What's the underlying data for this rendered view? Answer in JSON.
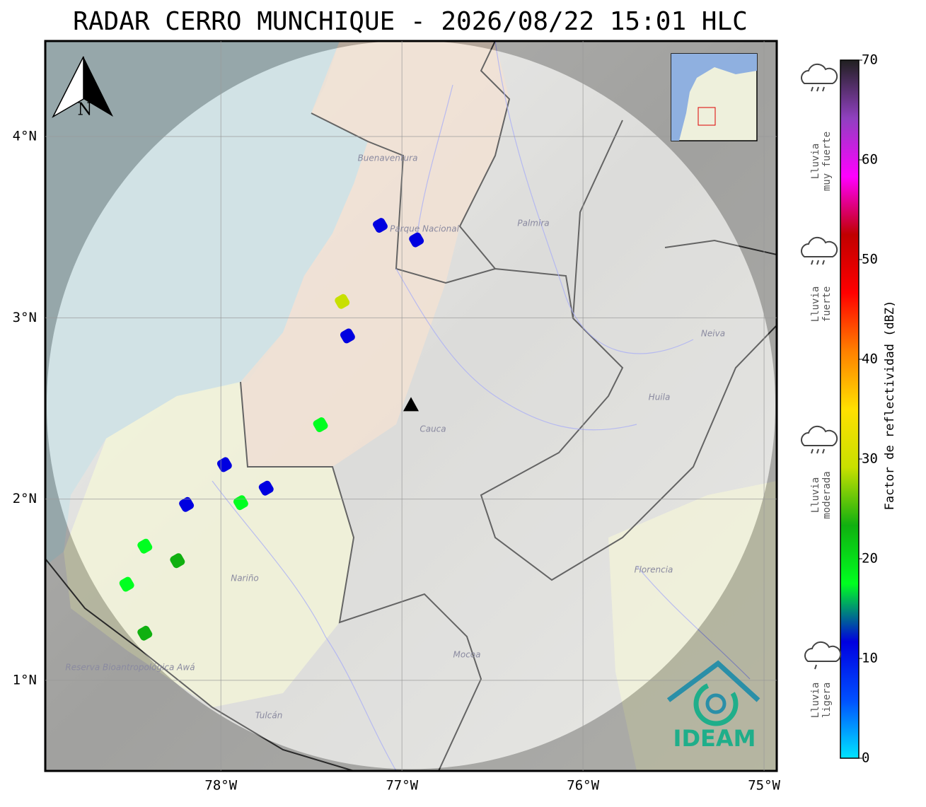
{
  "title": "RADAR CERRO MUNCHIQUE - 2026/08/22 15:01 HLC",
  "map": {
    "xlim": [
      -78.97,
      -74.93
    ],
    "ylim": [
      0.5,
      4.527
    ],
    "xticks": [
      {
        "value": -78,
        "label": "78°W"
      },
      {
        "value": -77,
        "label": "77°W"
      },
      {
        "value": -76,
        "label": "76°W"
      },
      {
        "value": -75,
        "label": "75°W"
      }
    ],
    "yticks": [
      {
        "value": 1,
        "label": "1°N"
      },
      {
        "value": 2,
        "label": "2°N"
      },
      {
        "value": 3,
        "label": "3°N"
      },
      {
        "value": 4,
        "label": "4°N"
      }
    ],
    "grid": true,
    "radar_site": {
      "lon": -76.95,
      "lat": 2.52
    },
    "north": "N",
    "places": [
      "Buenaventura",
      "Parque Nacional",
      "Palmira",
      "Cauca",
      "Neiva",
      "Huila",
      "Nariño",
      "Florencia",
      "Mocoa",
      "Reserva Bioantropológica Awá",
      "Tulcán"
    ],
    "logo": "IDEAM",
    "echoes": [
      {
        "lon": -77.12,
        "lat": 3.51,
        "dbz": 12
      },
      {
        "lon": -76.92,
        "lat": 3.43,
        "dbz": 10
      },
      {
        "lon": -77.33,
        "lat": 3.09,
        "dbz": 28
      },
      {
        "lon": -77.3,
        "lat": 2.9,
        "dbz": 10
      },
      {
        "lon": -77.45,
        "lat": 2.41,
        "dbz": 15
      },
      {
        "lon": -77.98,
        "lat": 2.19,
        "dbz": 10
      },
      {
        "lon": -77.75,
        "lat": 2.06,
        "dbz": 14
      },
      {
        "lon": -78.19,
        "lat": 1.97,
        "dbz": 12
      },
      {
        "lon": -77.89,
        "lat": 1.98,
        "dbz": 20
      },
      {
        "lon": -78.42,
        "lat": 1.74,
        "dbz": 18
      },
      {
        "lon": -78.24,
        "lat": 1.66,
        "dbz": 22
      },
      {
        "lon": -78.52,
        "lat": 1.53,
        "dbz": 20
      },
      {
        "lon": -78.42,
        "lat": 1.26,
        "dbz": 22
      }
    ]
  },
  "colorbar": {
    "label": "Factor de reflectividad (dBZ)",
    "clim": [
      0,
      70
    ],
    "ticks": [
      0,
      10,
      20,
      30,
      40,
      50,
      60,
      70
    ],
    "colors": [
      "#00e5ff",
      "#0050ff",
      "#0000e0",
      "#00ff20",
      "#10b010",
      "#c8e000",
      "#ffe000",
      "#ff8000",
      "#ff0000",
      "#c00000",
      "#ff00ff",
      "#9040c0",
      "#202020"
    ]
  },
  "rain_levels": [
    [
      "Lluvia",
      "muy fuerte"
    ],
    [
      "Lluvia",
      "fuerte"
    ],
    [
      "Lluvia",
      "moderada"
    ],
    [
      "Lluvia",
      "ligera"
    ]
  ]
}
